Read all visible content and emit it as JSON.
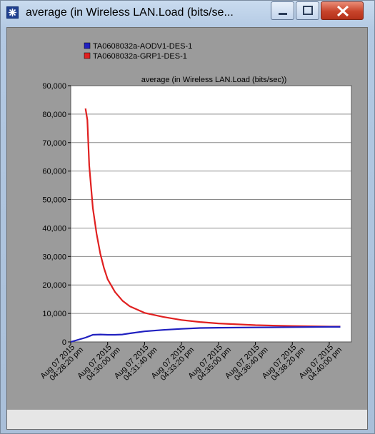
{
  "window": {
    "title": "average (in Wireless LAN.Load (bits/se..."
  },
  "colors": {
    "series_1": "#2020c0",
    "series_2": "#e02020",
    "plot_background": "#ffffff",
    "frame_background": "#9b9b9b"
  },
  "chart_data": {
    "type": "line",
    "title": "average (in Wireless LAN.Load (bits/sec))",
    "xlabel": "",
    "ylabel": "",
    "ylim": [
      0,
      90000
    ],
    "yticks": [
      "0",
      "10,000",
      "20,000",
      "30,000",
      "40,000",
      "50,000",
      "60,000",
      "70,000",
      "80,000",
      "90,000"
    ],
    "xticks": [
      [
        "Aug 07 2015",
        "04:28:20 pm"
      ],
      [
        "Aug 07 2015",
        "04:30:00 pm"
      ],
      [
        "Aug 07 2015",
        "04:31:40 pm"
      ],
      [
        "Aug 07 2015",
        "04:33:20 pm"
      ],
      [
        "Aug 07 2015",
        "04:35:00 pm"
      ],
      [
        "Aug 07 2015",
        "04:36:40 pm"
      ],
      [
        "Aug 07 2015",
        "04:38:20 pm"
      ],
      [
        "Aug 07 2015",
        "04:40:00 pm"
      ]
    ],
    "legend_position": "top-left",
    "grid": "horizontal",
    "series": [
      {
        "name": "TA0608032a-AODV1-DES-1",
        "x": [
          "04:28:20",
          "04:29:00",
          "04:29:20",
          "04:29:40",
          "04:30:00",
          "04:30:20",
          "04:30:40",
          "04:31:00",
          "04:31:40",
          "04:32:30",
          "04:33:20",
          "04:34:10",
          "04:35:00",
          "04:36:40",
          "04:38:20",
          "04:40:00",
          "04:40:30"
        ],
        "y": [
          0,
          1500,
          2500,
          2600,
          2500,
          2500,
          2600,
          3000,
          3700,
          4200,
          4600,
          4900,
          5000,
          5100,
          5200,
          5300,
          5300
        ]
      },
      {
        "name": "TA0608032a-GRP1-DES-1",
        "x": [
          "04:29:00",
          "04:29:05",
          "04:29:10",
          "04:29:20",
          "04:29:30",
          "04:29:40",
          "04:29:50",
          "04:30:00",
          "04:30:20",
          "04:30:40",
          "04:31:00",
          "04:31:40",
          "04:32:30",
          "04:33:20",
          "04:34:10",
          "04:35:00",
          "04:36:40",
          "04:38:20",
          "04:40:00",
          "04:40:30"
        ],
        "y": [
          82000,
          78000,
          62000,
          47000,
          38000,
          31000,
          26000,
          22000,
          17500,
          14500,
          12500,
          10200,
          8800,
          7700,
          7000,
          6500,
          5900,
          5600,
          5400,
          5400
        ]
      }
    ]
  }
}
